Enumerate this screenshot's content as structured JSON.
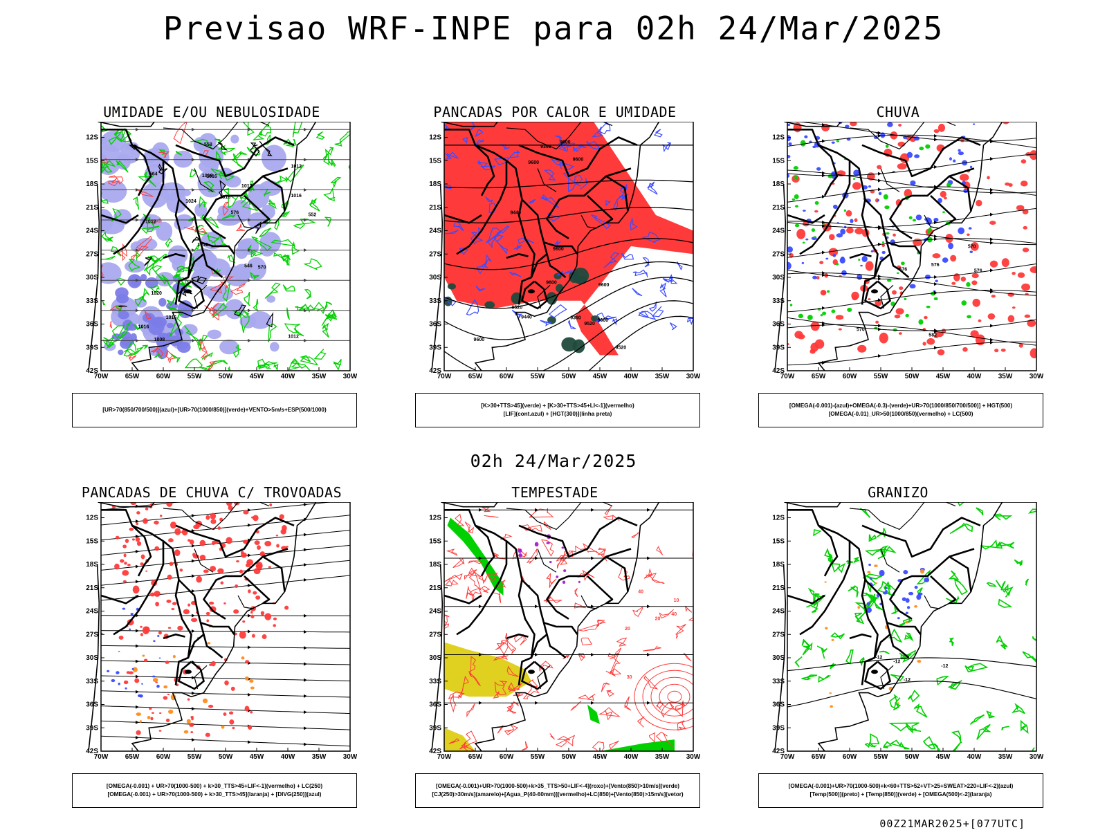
{
  "title": "Previsao WRF-INPE  para 02h 24/Mar/2025",
  "mid_title": "02h 24/Mar/2025",
  "footer": "00Z21MAR2025+[077UTC]",
  "colors": {
    "blue": "#3a4cff",
    "green": "#00d000",
    "red": "#ff3a3a",
    "darkgreen": "#1f4a3c",
    "yellow": "#e0d020",
    "orange": "#ff8c1a",
    "purple": "#a020d0",
    "lavender": "#a9a9ee"
  },
  "chart_data": [
    {
      "type": "map",
      "title": "UMIDADE E/OU NEBULOSIDADE",
      "lat_ticks": [
        "12S",
        "15S",
        "18S",
        "21S",
        "24S",
        "27S",
        "30S",
        "33S",
        "36S",
        "39S",
        "42S"
      ],
      "lon_ticks": [
        "70W",
        "65W",
        "60W",
        "55W",
        "50W",
        "45W",
        "40W",
        "35W",
        "30W"
      ],
      "contour_labels": [
        "1012",
        "1012",
        "1012",
        "1012",
        "1012",
        "1008",
        "1016",
        "1016",
        "1020",
        "1024",
        "1016",
        "1016",
        "1016",
        "576",
        "570",
        "564",
        "558",
        "552",
        "546",
        "1016"
      ],
      "legend": [
        "[UR>70(850/700/500)](azul)+[UR>70(1000/850)](verde)+VENTO>5m/s+ESP(500/1000)"
      ]
    },
    {
      "type": "map",
      "title": "PANCADAS POR CALOR E UMIDADE",
      "lat_ticks": [
        "12S",
        "15S",
        "18S",
        "21S",
        "24S",
        "27S",
        "30S",
        "33S",
        "36S",
        "39S",
        "42S"
      ],
      "lon_ticks": [
        "70W",
        "65W",
        "60W",
        "55W",
        "50W",
        "45W",
        "40W",
        "35W",
        "30W"
      ],
      "contour_labels": [
        "9600",
        "9600",
        "9600",
        "9600",
        "9600",
        "9600",
        "9600",
        "9600",
        "9520",
        "9520",
        "9520",
        "9440",
        "9440",
        "9360",
        "9360"
      ],
      "legend": [
        "[K>30+TTS>45](verde) + [K>30+TTS>45+LI<-1](vermelho)",
        "[LIF](cont.azul) + [HGT(300)](linha preta)"
      ]
    },
    {
      "type": "map",
      "title": "CHUVA",
      "lat_ticks": [
        "12S",
        "15S",
        "18S",
        "21S",
        "24S",
        "27S",
        "30S",
        "33S",
        "36S",
        "39S",
        "42S"
      ],
      "lon_ticks": [
        "70W",
        "65W",
        "60W",
        "55W",
        "50W",
        "45W",
        "40W",
        "35W",
        "30W"
      ],
      "contour_labels": [
        "582",
        "576",
        "576",
        "570",
        "570",
        "576"
      ],
      "legend": [
        "[OMEGA(-0.001)-(azul)+OMEGA(-0.3)-(verde)+UR>70(1000/850/700/500)] + HGT(500)",
        "[OMEGA(-0.01)_UR>50(1000/850)(vermelho) + LC(500)"
      ]
    },
    {
      "type": "map",
      "title": "PANCADAS DE CHUVA C/ TROVOADAS",
      "lat_ticks": [
        "12S",
        "15S",
        "18S",
        "21S",
        "24S",
        "27S",
        "30S",
        "33S",
        "36S",
        "39S",
        "42S"
      ],
      "lon_ticks": [
        "70W",
        "65W",
        "60W",
        "55W",
        "50W",
        "45W",
        "40W",
        "35W",
        "30W"
      ],
      "contour_labels": [],
      "legend": [
        "[OMEGA(-0.001) + UR>70(1000-500) + k>30_TTS>45+LIF<-1](vermelho) + LC(250)",
        "[OMEGA(-0.001) + UR>70(1000-500) + k>30_TTS>45](laranja) + [DIVG(250)](azul)"
      ]
    },
    {
      "type": "map",
      "title": "TEMPESTADE",
      "lat_ticks": [
        "12S",
        "15S",
        "18S",
        "21S",
        "24S",
        "27S",
        "30S",
        "33S",
        "36S",
        "39S",
        "42S"
      ],
      "lon_ticks": [
        "70W",
        "65W",
        "60W",
        "55W",
        "50W",
        "45W",
        "40W",
        "35W",
        "30W"
      ],
      "contour_labels": [
        "30",
        "40",
        "40",
        "10",
        "20",
        "20"
      ],
      "legend": [
        "[OMEGA(-0.001)+UR>70(1000-500)+k>35_TTS>50+LIF<-4](roxo)+[Vento(850)>10m/s](verde)",
        "[CJ(250)>30m/s](amarelo)+[Agua_P(40-60mm)](vermelho)+LC(850)+[Vento(850)>15m/s](vetor)"
      ]
    },
    {
      "type": "map",
      "title": "GRANIZO",
      "lat_ticks": [
        "12S",
        "15S",
        "18S",
        "21S",
        "24S",
        "27S",
        "30S",
        "33S",
        "36S",
        "39S",
        "42S"
      ],
      "lon_ticks": [
        "70W",
        "65W",
        "60W",
        "55W",
        "50W",
        "45W",
        "40W",
        "35W",
        "30W"
      ],
      "contour_labels": [
        "-12",
        "-12",
        "-12",
        "-12"
      ],
      "legend": [
        "[OMEGA(-0.001)+UR>70(1000-500)+k<60+TTS>52+VT>25+SWEAT>220+LIF<-2](azul)",
        "[Temp(500)](preto) + [Temp(850)](verde) + [OMEGA(500)<-2](laranja)"
      ]
    }
  ]
}
